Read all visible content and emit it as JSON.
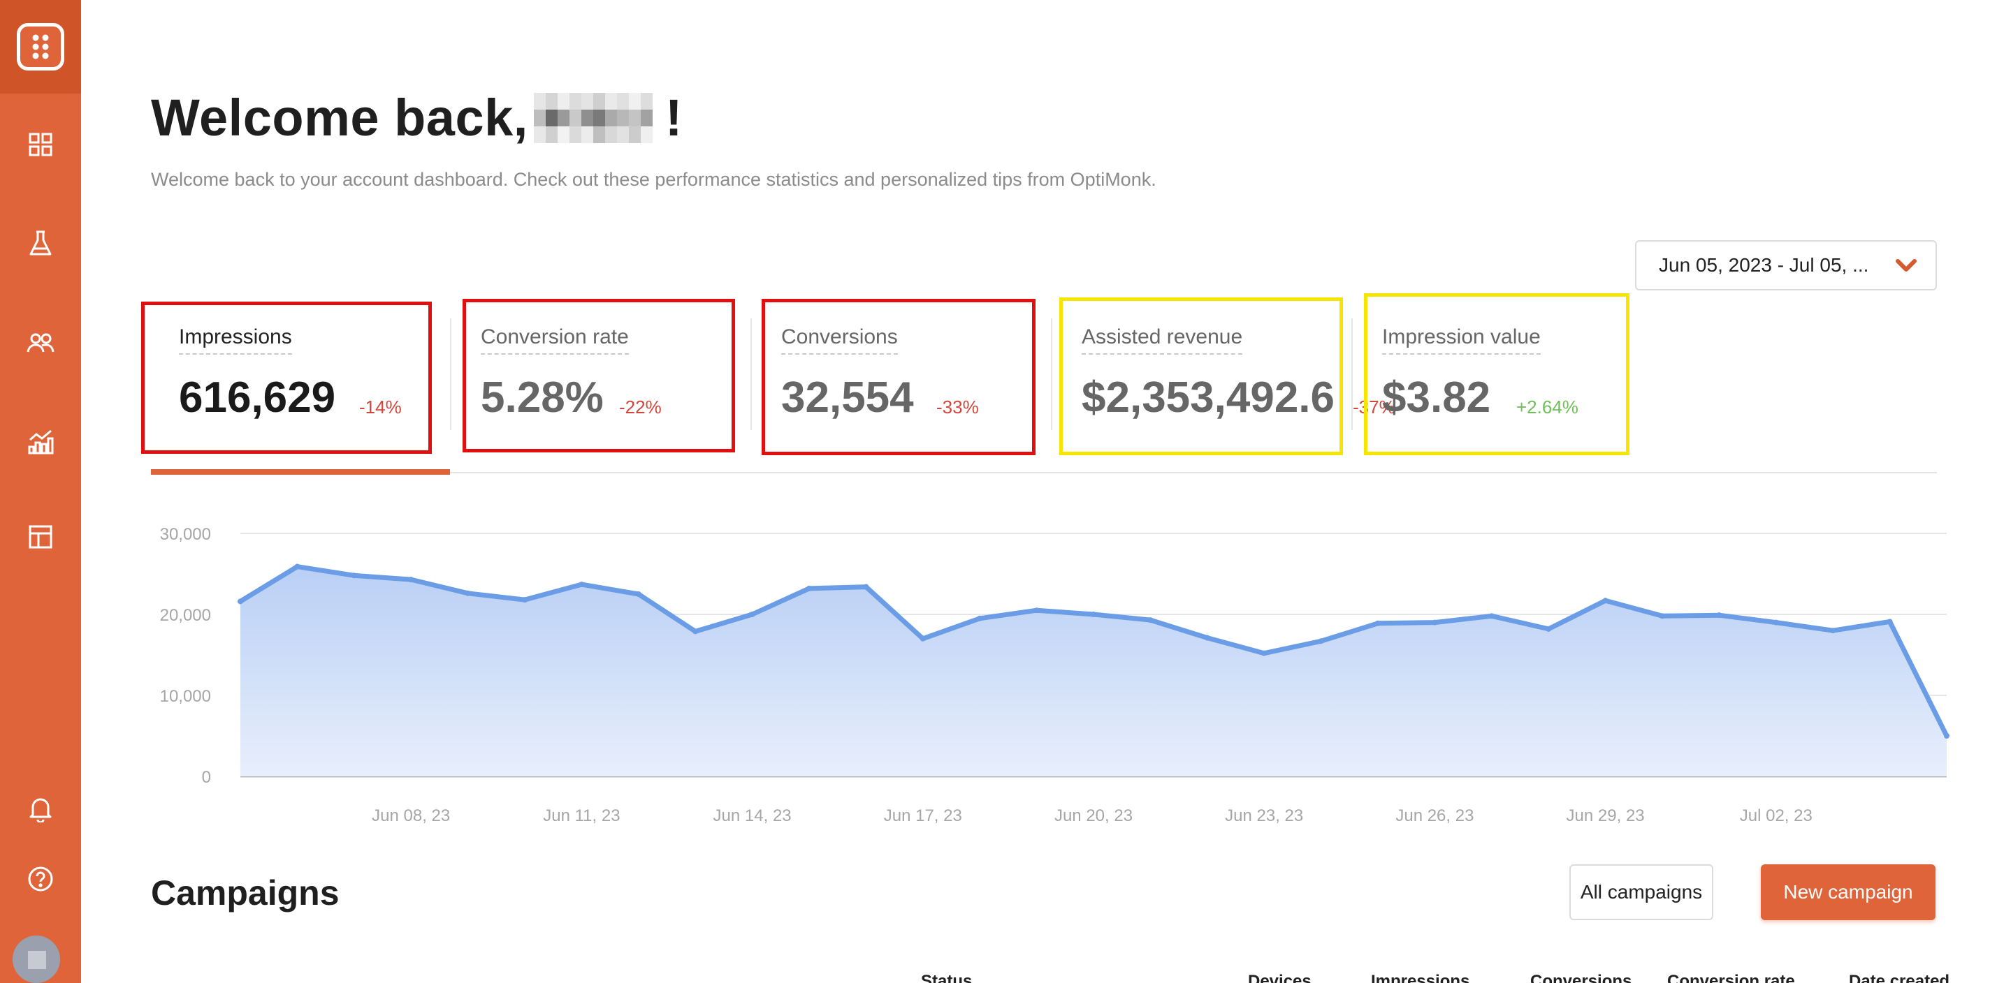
{
  "sidebar": {
    "logo": "optimonk-logo-icon",
    "items": [
      {
        "icon": "dashboard-grid-icon"
      },
      {
        "icon": "flask-icon"
      },
      {
        "icon": "users-icon"
      },
      {
        "icon": "analytics-chart-icon"
      },
      {
        "icon": "layout-template-icon"
      }
    ],
    "bottom": [
      {
        "icon": "bell-icon"
      },
      {
        "icon": "help-circle-icon"
      }
    ]
  },
  "header": {
    "title_prefix": "Welcome back,",
    "title_suffix": "!",
    "subtitle": "Welcome back to your account dashboard. Check out these performance statistics and personalized tips from OptiMonk."
  },
  "date_range": {
    "value": "Jun 05, 2023 - Jul 05, ..."
  },
  "kpis": [
    {
      "label": "Impressions",
      "value": "616,629",
      "delta": "-14%"
    },
    {
      "label": "Conversion rate",
      "value": "5.28%",
      "delta": "-22%"
    },
    {
      "label": "Conversions",
      "value": "32,554",
      "delta": "-33%"
    },
    {
      "label": "Assisted revenue",
      "value": "$2,353,492.6",
      "delta": "-37%"
    },
    {
      "label": "Impression value",
      "value": "$3.82",
      "delta": "+2.64%"
    }
  ],
  "colors": {
    "accent": "#e0643a",
    "line": "#6a9de6",
    "negative": "#d2473c",
    "positive": "#6fbf5a"
  },
  "chart_data": {
    "type": "area",
    "y_ticks": [
      "30,000",
      "20,000",
      "10,000",
      "0"
    ],
    "x_ticks": [
      "Jun 08, 23",
      "Jun 11, 23",
      "Jun 14, 23",
      "Jun 17, 23",
      "Jun 20, 23",
      "Jun 23, 23",
      "Jun 26, 23",
      "Jun 29, 23",
      "Jul 02, 23"
    ],
    "x": [
      "Jun 05, 23",
      "Jun 06, 23",
      "Jun 07, 23",
      "Jun 08, 23",
      "Jun 09, 23",
      "Jun 10, 23",
      "Jun 11, 23",
      "Jun 12, 23",
      "Jun 13, 23",
      "Jun 14, 23",
      "Jun 15, 23",
      "Jun 16, 23",
      "Jun 17, 23",
      "Jun 18, 23",
      "Jun 19, 23",
      "Jun 20, 23",
      "Jun 21, 23",
      "Jun 22, 23",
      "Jun 23, 23",
      "Jun 24, 23",
      "Jun 25, 23",
      "Jun 26, 23",
      "Jun 27, 23",
      "Jun 28, 23",
      "Jun 29, 23",
      "Jun 30, 23",
      "Jul 01, 23",
      "Jul 02, 23",
      "Jul 03, 23",
      "Jul 04, 23",
      "Jul 05, 23"
    ],
    "values": [
      21600,
      25900,
      24800,
      24300,
      22600,
      21800,
      23700,
      22500,
      17900,
      20000,
      23200,
      23400,
      17000,
      19500,
      20500,
      20000,
      19300,
      17100,
      15200,
      16700,
      18900,
      19000,
      19800,
      18200,
      21700,
      19800,
      19900,
      19000,
      18000,
      19100,
      5000
    ],
    "ylim": [
      0,
      30000
    ],
    "grid": true
  },
  "campaigns": {
    "title": "Campaigns",
    "all_label": "All campaigns",
    "new_label": "New campaign",
    "columns": [
      "Status",
      "Devices",
      "Impressions",
      "Conversions",
      "Conversion rate",
      "Date created"
    ]
  }
}
